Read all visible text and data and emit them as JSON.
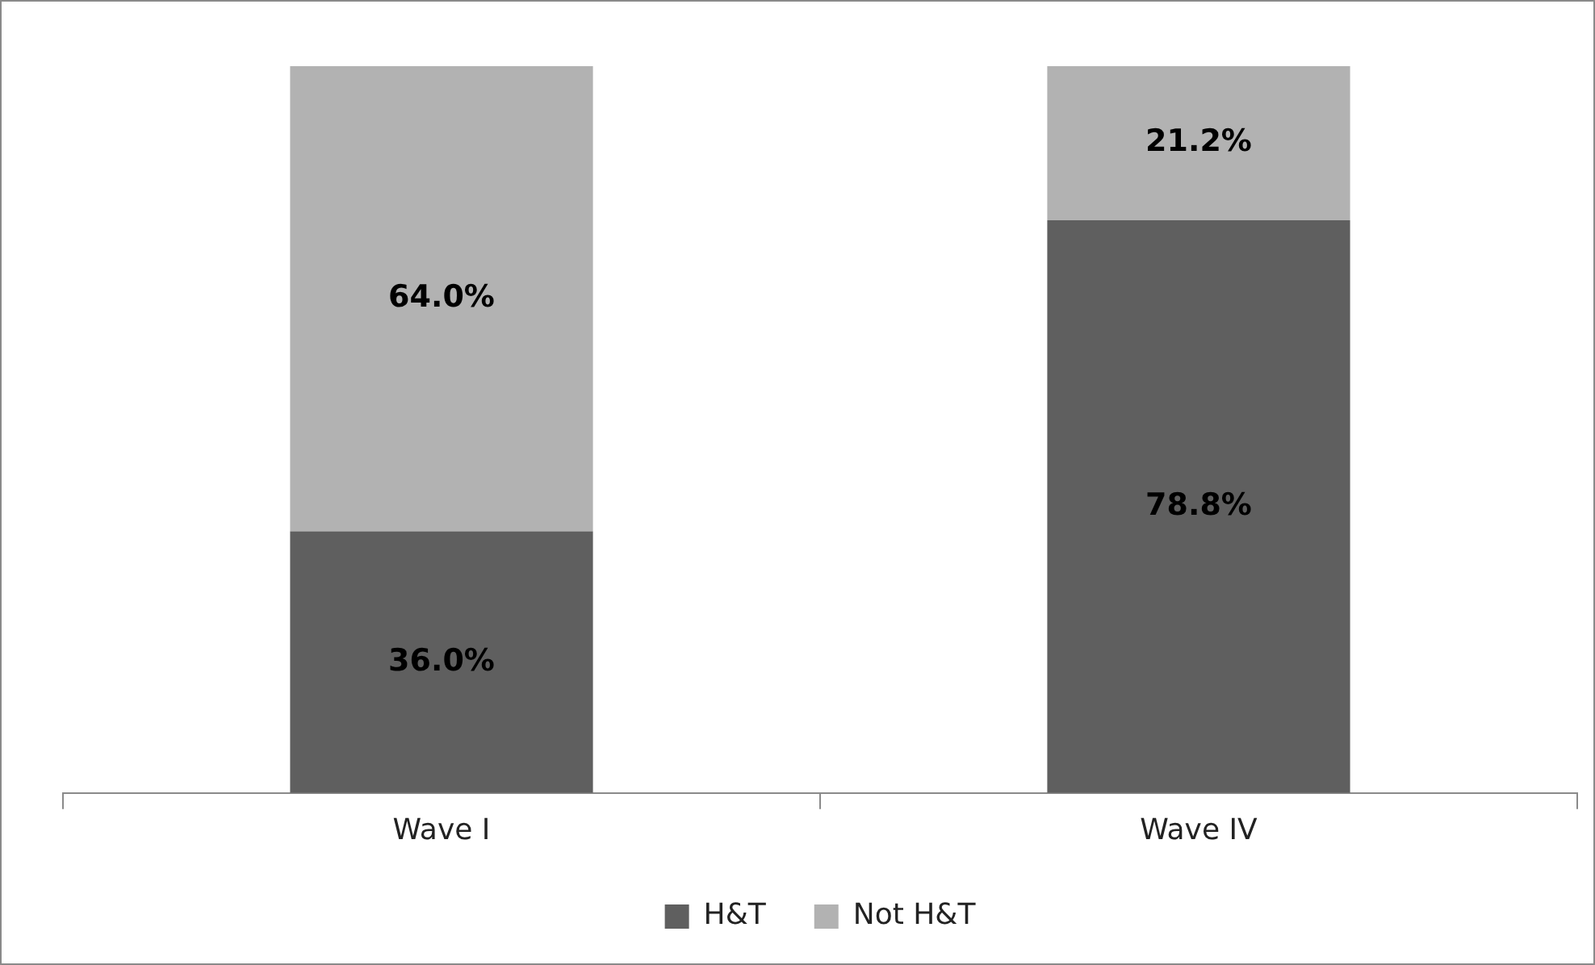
{
  "chart_data": {
    "type": "bar",
    "stacked": true,
    "categories": [
      "Wave I",
      "Wave IV"
    ],
    "ylim": [
      0,
      100
    ],
    "legend": "bottom",
    "series": [
      {
        "name": "H&T",
        "color": "#5f5f5f",
        "values": [
          36.0,
          78.8
        ],
        "value_labels": [
          "36.0%",
          "78.8%"
        ]
      },
      {
        "name": "Not H&T",
        "color": "#b2b2b2",
        "values": [
          64.0,
          21.2
        ],
        "value_labels": [
          "64.0%",
          "21.2%"
        ]
      }
    ]
  }
}
